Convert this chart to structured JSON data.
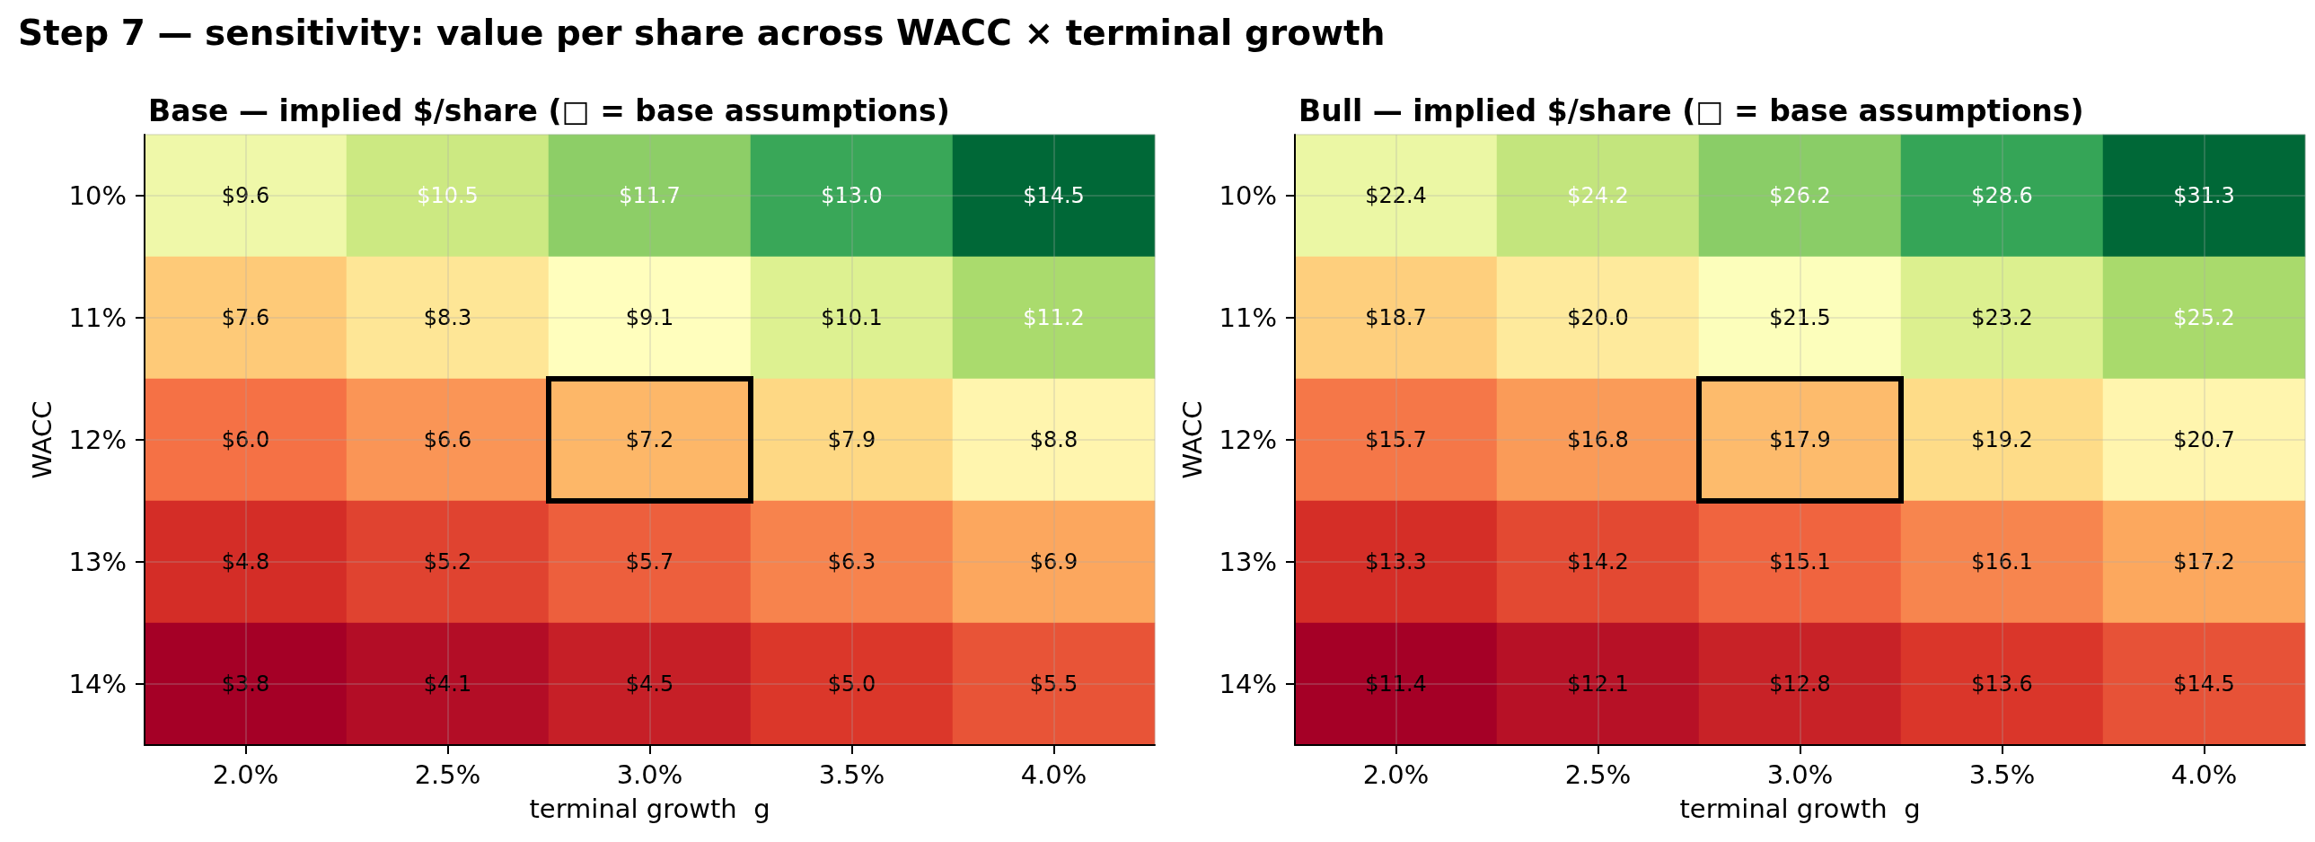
{
  "chart_data": [
    {
      "type": "heatmap",
      "title": "Step 7 — sensitivity: value per share across WACC × terminal growth",
      "subtitle": "Base — implied $/share (□ = base assumptions)",
      "xlabel": "terminal growth  g",
      "ylabel": "WACC",
      "categories": [
        "2.0%",
        "2.5%",
        "3.0%",
        "3.5%",
        "4.0%"
      ],
      "y_categories": [
        "10%",
        "11%",
        "12%",
        "13%",
        "14%"
      ],
      "cells": [
        [
          9.6,
          10.5,
          11.7,
          13.0,
          14.5
        ],
        [
          7.6,
          8.3,
          9.1,
          10.1,
          11.2
        ],
        [
          6.0,
          6.6,
          7.2,
          7.9,
          8.8
        ],
        [
          4.8,
          5.2,
          5.7,
          6.3,
          6.9
        ],
        [
          3.8,
          4.1,
          4.5,
          5.0,
          5.5
        ]
      ],
      "cell_labels": [
        [
          "$9.6",
          "$10.5",
          "$11.7",
          "$13.0",
          "$14.5"
        ],
        [
          "$7.6",
          "$8.3",
          "$9.1",
          "$10.1",
          "$11.2"
        ],
        [
          "$6.0",
          "$6.6",
          "$7.2",
          "$7.9",
          "$8.8"
        ],
        [
          "$4.8",
          "$5.2",
          "$5.7",
          "$6.3",
          "$6.9"
        ],
        [
          "$3.8",
          "$4.1",
          "$4.5",
          "$5.0",
          "$5.5"
        ]
      ],
      "grid": true
    },
    {
      "type": "heatmap",
      "subtitle": "Bull — implied $/share (□ = base assumptions)",
      "xlabel": "terminal growth  g",
      "ylabel": "WACC",
      "categories": [
        "2.0%",
        "2.5%",
        "3.0%",
        "3.5%",
        "4.0%"
      ],
      "y_categories": [
        "10%",
        "11%",
        "12%",
        "13%",
        "14%"
      ],
      "cells": [
        [
          22.4,
          24.2,
          26.2,
          28.6,
          31.3
        ],
        [
          18.7,
          20.0,
          21.5,
          23.2,
          25.2
        ],
        [
          15.7,
          16.8,
          17.9,
          19.2,
          20.7
        ],
        [
          13.3,
          14.2,
          15.1,
          16.1,
          17.2
        ],
        [
          11.4,
          12.1,
          12.8,
          13.6,
          14.5
        ]
      ],
      "cell_labels": [
        [
          "$22.4",
          "$24.2",
          "$26.2",
          "$28.6",
          "$31.3"
        ],
        [
          "$18.7",
          "$20.0",
          "$21.5",
          "$23.2",
          "$25.2"
        ],
        [
          "$15.7",
          "$16.8",
          "$17.9",
          "$19.2",
          "$20.7"
        ],
        [
          "$13.3",
          "$14.2",
          "$15.1",
          "$16.1",
          "$17.2"
        ],
        [
          "$11.4",
          "$12.1",
          "$12.8",
          "$13.6",
          "$14.5"
        ]
      ],
      "grid": true
    }
  ]
}
